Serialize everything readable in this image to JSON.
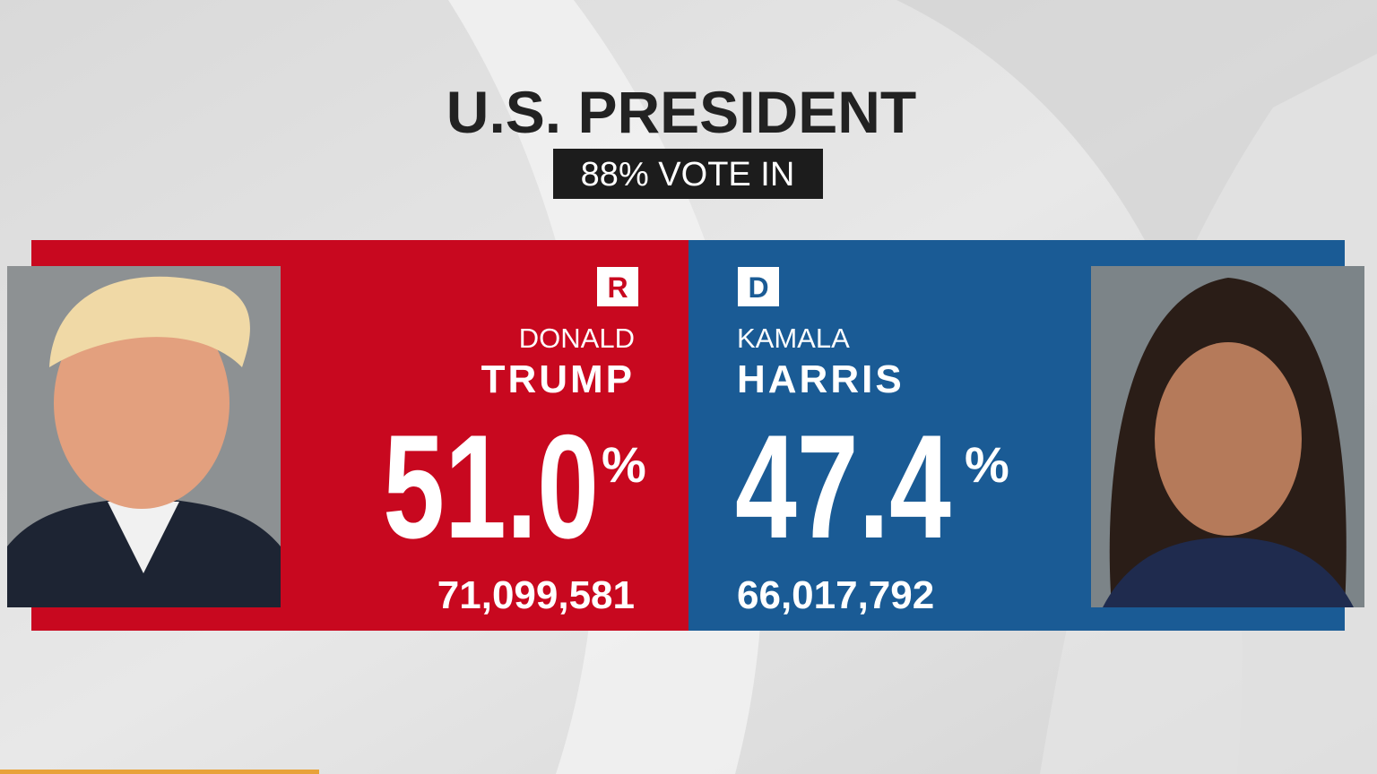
{
  "header": {
    "title": "U.S. PRESIDENT",
    "badge": "88% VOTE IN"
  },
  "candidates": [
    {
      "party": "R",
      "first_name": "DONALD",
      "last_name": "TRUMP",
      "pct": "51.0",
      "pct_sign": "%",
      "votes": "71,099,581"
    },
    {
      "party": "D",
      "first_name": "KAMALA",
      "last_name": "HARRIS",
      "pct": "47.4",
      "pct_sign": "%",
      "votes": "66,017,792"
    }
  ]
}
